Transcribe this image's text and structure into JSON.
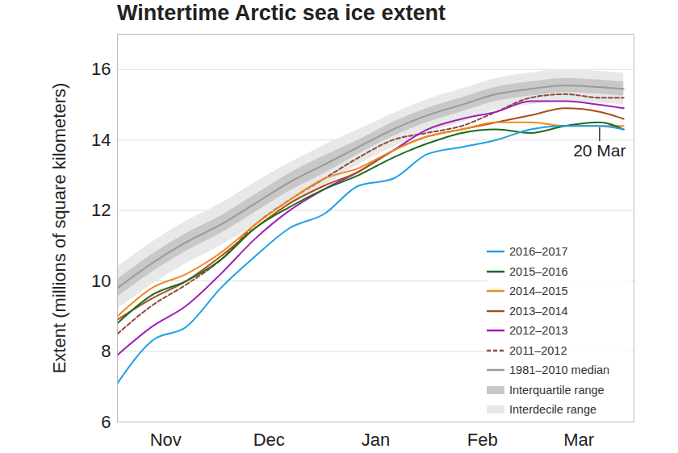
{
  "chart_data": {
    "type": "line",
    "title": "Wintertime Arctic sea ice extent",
    "y_label": "Extent (millions of square kilometers)",
    "x": [
      0,
      10,
      20,
      30,
      40,
      50,
      60,
      70,
      80,
      90,
      100,
      110,
      120,
      130,
      140,
      147
    ],
    "xlim": [
      0,
      150
    ],
    "xticks": [
      {
        "value": 14,
        "label": "Nov"
      },
      {
        "value": 44,
        "label": "Dec"
      },
      {
        "value": 75,
        "label": "Jan"
      },
      {
        "value": 106,
        "label": "Feb"
      },
      {
        "value": 134,
        "label": "Mar"
      }
    ],
    "ylim": [
      6,
      17
    ],
    "yticks": [
      6,
      8,
      10,
      12,
      14,
      16
    ],
    "grid": true,
    "legend": "bottom-right",
    "series": [
      {
        "name": "2016–2017",
        "color": "#1e9fe6",
        "line_style": "solid",
        "values": [
          7.1,
          8.3,
          8.7,
          9.8,
          10.7,
          11.5,
          11.9,
          12.7,
          12.9,
          13.6,
          13.8,
          14.0,
          14.3,
          14.4,
          14.4,
          14.3
        ]
      },
      {
        "name": "2015–2016",
        "color": "#1b6a1e",
        "line_style": "solid",
        "values": [
          8.8,
          9.6,
          10.0,
          10.6,
          11.5,
          12.1,
          12.6,
          13.0,
          13.5,
          13.9,
          14.2,
          14.3,
          14.2,
          14.4,
          14.5,
          14.3
        ]
      },
      {
        "name": "2014–2015",
        "color": "#f08a1c",
        "line_style": "solid",
        "values": [
          9.0,
          9.8,
          10.2,
          10.8,
          11.6,
          12.3,
          12.9,
          13.2,
          13.7,
          14.1,
          14.3,
          14.5,
          14.5,
          14.4,
          14.4,
          14.4
        ]
      },
      {
        "name": "2013–2014",
        "color": "#a4501c",
        "line_style": "solid",
        "values": [
          8.9,
          9.5,
          10.0,
          10.7,
          11.5,
          12.2,
          12.7,
          13.1,
          13.7,
          14.1,
          14.3,
          14.5,
          14.7,
          14.9,
          14.8,
          14.6
        ]
      },
      {
        "name": "2012–2013",
        "color": "#a21fb3",
        "line_style": "solid",
        "values": [
          7.9,
          8.7,
          9.3,
          10.2,
          11.2,
          12.0,
          12.6,
          13.1,
          13.7,
          14.3,
          14.6,
          14.8,
          15.1,
          15.1,
          15.0,
          14.9
        ]
      },
      {
        "name": "2011–2012",
        "color": "#8b4a3a",
        "line_style": "dashed",
        "values": [
          8.5,
          9.3,
          9.9,
          10.6,
          11.6,
          12.3,
          12.9,
          13.5,
          14.0,
          14.2,
          14.4,
          14.8,
          15.2,
          15.3,
          15.2,
          15.2
        ]
      },
      {
        "name": "1981–2010 median",
        "color": "#999999",
        "line_style": "solid",
        "values": [
          9.8,
          10.5,
          11.1,
          11.6,
          12.2,
          12.8,
          13.3,
          13.8,
          14.3,
          14.7,
          15.0,
          15.3,
          15.45,
          15.55,
          15.5,
          15.45
        ]
      }
    ],
    "bands": [
      {
        "name": "Interquartile range",
        "color": "#c8c8c8",
        "low": [
          9.55,
          10.25,
          10.85,
          11.35,
          11.95,
          12.55,
          13.05,
          13.6,
          14.1,
          14.5,
          14.8,
          15.1,
          15.25,
          15.35,
          15.3,
          15.25
        ],
        "high": [
          10.05,
          10.75,
          11.35,
          11.85,
          12.45,
          13.05,
          13.55,
          14.0,
          14.5,
          14.9,
          15.2,
          15.5,
          15.65,
          15.75,
          15.7,
          15.65
        ]
      },
      {
        "name": "Interdecile range",
        "color": "#e8e8e8",
        "low": [
          9.2,
          9.9,
          10.5,
          11.0,
          11.6,
          12.2,
          12.7,
          13.3,
          13.8,
          14.2,
          14.5,
          14.85,
          15.0,
          15.1,
          15.05,
          15.0
        ],
        "high": [
          10.4,
          11.1,
          11.7,
          12.2,
          12.8,
          13.35,
          13.85,
          14.3,
          14.75,
          15.15,
          15.45,
          15.75,
          15.9,
          16.0,
          15.95,
          15.9
        ]
      }
    ],
    "annotations": [
      {
        "text": "20 Mar",
        "x": 140,
        "point": 14.35,
        "y": 13.95
      }
    ]
  }
}
